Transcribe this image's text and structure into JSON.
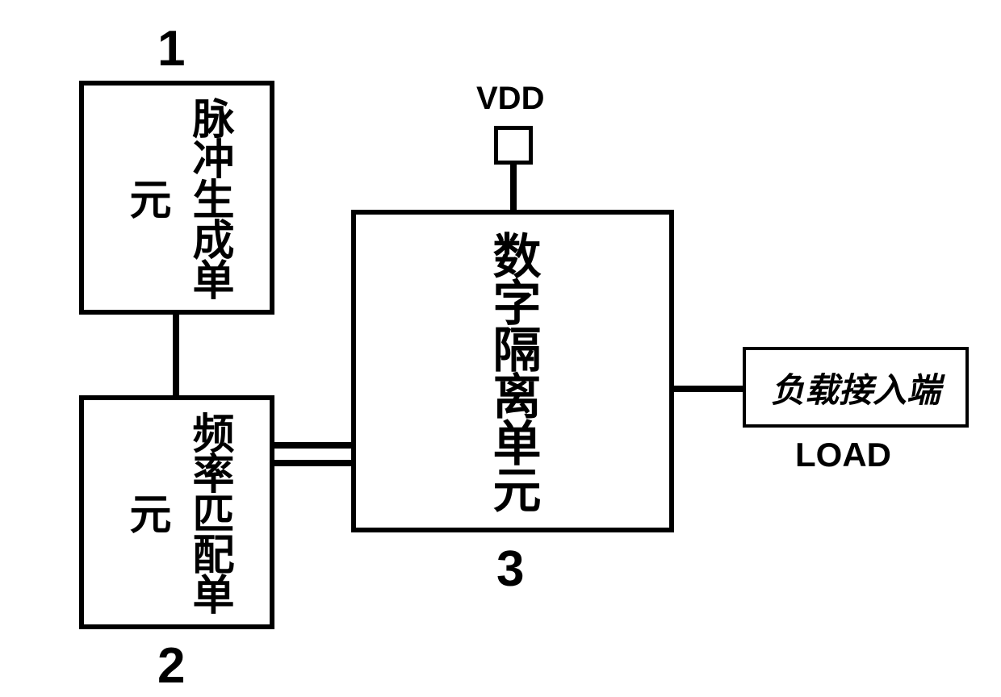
{
  "diagram": {
    "type": "block-diagram",
    "background_color": "#ffffff",
    "border_color": "#000000",
    "text_color": "#000000",
    "blocks": {
      "b1": {
        "number": "1",
        "text": "脉冲生成单元",
        "font_size": 52,
        "border_width": 6
      },
      "b2": {
        "number": "2",
        "text": "频率匹配单元",
        "font_size": 52,
        "border_width": 6
      },
      "b3": {
        "number": "3",
        "text": "数字隔离单元",
        "font_size": 60,
        "border_width": 6
      },
      "load": {
        "text": "负载接入端",
        "label": "LOAD",
        "font_size": 42,
        "border_width": 4
      },
      "vdd": {
        "label": "VDD",
        "font_size": 40
      }
    },
    "label_font_size": 62,
    "connections": [
      {
        "from": "b1",
        "to": "b2",
        "style": "single"
      },
      {
        "from": "b2",
        "to": "b3",
        "style": "double"
      },
      {
        "from": "vdd",
        "to": "b3",
        "style": "single"
      },
      {
        "from": "b3",
        "to": "load",
        "style": "single"
      }
    ]
  }
}
